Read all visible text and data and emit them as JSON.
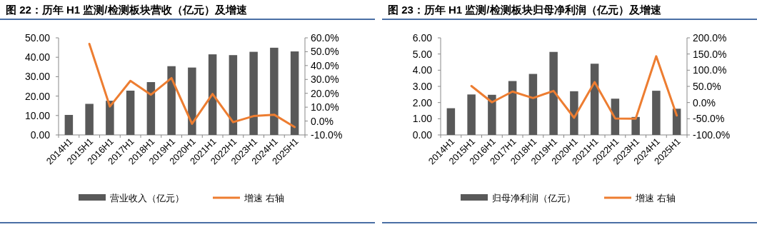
{
  "chart_data": [
    {
      "type": "bar",
      "title": "图 22：历年 H1 监测/检测板块营收（亿元）及增速",
      "categories": [
        "2014H1",
        "2015H1",
        "2016H1",
        "2017H1",
        "2018H1",
        "2019H1",
        "2020H1",
        "2021H1",
        "2022H1",
        "2023H1",
        "2024H1",
        "2025H1"
      ],
      "series": [
        {
          "name": "营业收入（亿元）",
          "type": "bar",
          "color": "#595959",
          "values": [
            10.3,
            16.0,
            17.6,
            22.8,
            27.2,
            35.4,
            34.7,
            41.5,
            41.1,
            42.8,
            44.9,
            43.0
          ]
        },
        {
          "name": "增速 右轴",
          "type": "line",
          "axis": "y2",
          "color": "#ed7d31",
          "values": [
            null,
            55.6,
            10.5,
            29.0,
            19.0,
            31.0,
            -2.0,
            19.5,
            -0.8,
            3.6,
            4.6,
            -4.3
          ]
        }
      ],
      "ylim": [
        0,
        50
      ],
      "yticks": [
        {
          "value": 0,
          "label": "0.00"
        },
        {
          "value": 10,
          "label": "10.00"
        },
        {
          "value": 20,
          "label": "20.00"
        },
        {
          "value": 30,
          "label": "30.00"
        },
        {
          "value": 40,
          "label": "40.00"
        },
        {
          "value": 50,
          "label": "50.00"
        }
      ],
      "y2lim": [
        -10,
        60
      ],
      "y2ticks": [
        {
          "value": -10,
          "label": "-10.0%"
        },
        {
          "value": 0,
          "label": "0.0%"
        },
        {
          "value": 10,
          "label": "10.0%"
        },
        {
          "value": 20,
          "label": "20.0%"
        },
        {
          "value": 30,
          "label": "30.0%"
        },
        {
          "value": 40,
          "label": "40.0%"
        },
        {
          "value": 50,
          "label": "50.0%"
        },
        {
          "value": 60,
          "label": "60.0%"
        }
      ],
      "legend": "bottom"
    },
    {
      "type": "bar",
      "title": "图 23：历年 H1 监测/检测板块归母净利润（亿元）及增速",
      "categories": [
        "2014H1",
        "2015H1",
        "2016H1",
        "2017H1",
        "2018H1",
        "2019H1",
        "2020H1",
        "2021H1",
        "2022H1",
        "2023H1",
        "2024H1",
        "2025H1"
      ],
      "series": [
        {
          "name": "归母净利润（亿元）",
          "type": "bar",
          "color": "#595959",
          "values": [
            1.65,
            2.5,
            2.48,
            3.33,
            3.77,
            5.13,
            2.7,
            4.4,
            2.24,
            1.11,
            2.73,
            1.62
          ]
        },
        {
          "name": "增速 右轴",
          "type": "line",
          "axis": "y2",
          "color": "#ed7d31",
          "values": [
            null,
            51,
            1,
            34,
            14,
            36,
            -47,
            63,
            -49,
            -50,
            143,
            -40
          ]
        }
      ],
      "ylim": [
        0,
        6
      ],
      "yticks": [
        {
          "value": 0,
          "label": "0.00"
        },
        {
          "value": 1,
          "label": "1.00"
        },
        {
          "value": 2,
          "label": "2.00"
        },
        {
          "value": 3,
          "label": "3.00"
        },
        {
          "value": 4,
          "label": "4.00"
        },
        {
          "value": 5,
          "label": "5.00"
        },
        {
          "value": 6,
          "label": "6.00"
        }
      ],
      "y2lim": [
        -100,
        200
      ],
      "y2ticks": [
        {
          "value": -100,
          "label": "-100.0%"
        },
        {
          "value": -50,
          "label": "-50.0%"
        },
        {
          "value": 0,
          "label": "0.0%"
        },
        {
          "value": 50,
          "label": "50.0%"
        },
        {
          "value": 100,
          "label": "100.0%"
        },
        {
          "value": 150,
          "label": "150.0%"
        },
        {
          "value": 200,
          "label": "200.0%"
        }
      ],
      "legend": "bottom"
    }
  ]
}
